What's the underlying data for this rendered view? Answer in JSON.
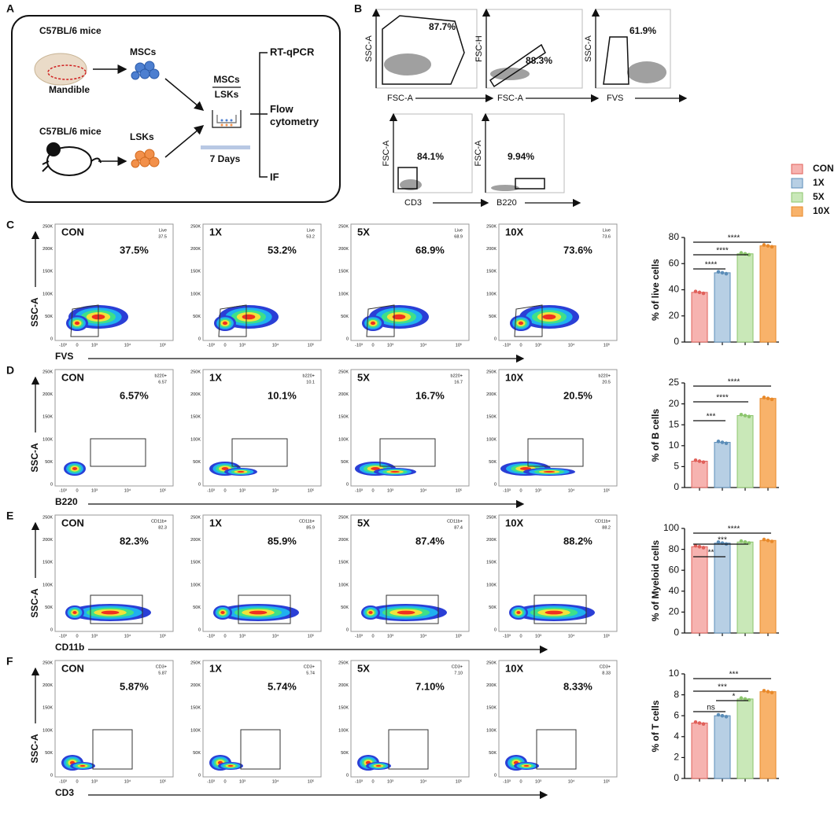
{
  "panel_a": {
    "letter": "A",
    "mice_top": "C57BL/6 mice",
    "mandible": "Mandible",
    "mscs": "MSCs",
    "mice_bottom": "C57BL/6 mice",
    "lsks": "LSKs",
    "coculture_top": "MSCs",
    "coculture_bottom": "LSKs",
    "duration": "7 Days",
    "assays": [
      "RT-qPCR",
      "Flow cytometry",
      "IF"
    ]
  },
  "panel_b": {
    "letter": "B",
    "plots": [
      {
        "y_label": "SSC-A",
        "x_label": "FSC-A",
        "percent": "87.7%"
      },
      {
        "y_label": "FSC-H",
        "x_label": "FSC-A",
        "percent": "88.3%"
      },
      {
        "y_label": "SSC-A",
        "x_label": "FVS",
        "percent": "61.9%"
      },
      {
        "y_label": "FSC-A",
        "x_label": "CD3",
        "percent": "84.1%"
      },
      {
        "y_label": "FSC-A",
        "x_label": "B220",
        "percent": "9.94%"
      }
    ]
  },
  "flow_axes": {
    "yticks": [
      "250K",
      "200K",
      "150K",
      "100K",
      "50K",
      "0"
    ],
    "xticks": [
      "-10³",
      "0",
      "10³",
      "10⁴",
      "10⁵"
    ]
  },
  "flow_rows": [
    {
      "letter": "C",
      "y_label": "SSC-A",
      "marker": "FVS",
      "gate": "Live",
      "plots": [
        {
          "group": "CON",
          "gate_value": "37.5",
          "percent": "37.5%"
        },
        {
          "group": "1X",
          "gate_value": "53.2",
          "percent": "53.2%"
        },
        {
          "group": "5X",
          "gate_value": "68.9",
          "percent": "68.9%"
        },
        {
          "group": "10X",
          "gate_value": "73.6",
          "percent": "73.6%"
        }
      ]
    },
    {
      "letter": "D",
      "y_label": "SSC-A",
      "marker": "B220",
      "gate": "b220+",
      "plots": [
        {
          "group": "CON",
          "gate_value": "6.57",
          "percent": "6.57%"
        },
        {
          "group": "1X",
          "gate_value": "10.1",
          "percent": "10.1%"
        },
        {
          "group": "5X",
          "gate_value": "16.7",
          "percent": "16.7%"
        },
        {
          "group": "10X",
          "gate_value": "20.5",
          "percent": "20.5%"
        }
      ]
    },
    {
      "letter": "E",
      "y_label": "SSC-A",
      "marker": "CD11b",
      "gate": "CD11b+",
      "plots": [
        {
          "group": "CON",
          "gate_value": "82.3",
          "percent": "82.3%"
        },
        {
          "group": "1X",
          "gate_value": "85.9",
          "percent": "85.9%"
        },
        {
          "group": "5X",
          "gate_value": "87.4",
          "percent": "87.4%"
        },
        {
          "group": "10X",
          "gate_value": "88.2",
          "percent": "88.2%"
        }
      ]
    },
    {
      "letter": "F",
      "y_label": "SSC-A",
      "marker": "CD3",
      "gate": "CD3+",
      "plots": [
        {
          "group": "CON",
          "gate_value": "5.87",
          "percent": "5.87%"
        },
        {
          "group": "1X",
          "gate_value": "5.74",
          "percent": "5.74%"
        },
        {
          "group": "5X",
          "gate_value": "7.10",
          "percent": "7.10%"
        },
        {
          "group": "10X",
          "gate_value": "8.33",
          "percent": "8.33%"
        }
      ]
    }
  ],
  "chart_data": [
    {
      "type": "bar",
      "y_label": "% of live cells",
      "categories": [
        "CON",
        "1X",
        "5X",
        "10X"
      ],
      "colors": [
        "#f6b3b0",
        "#b7cfe4",
        "#c9e8b8",
        "#f8b26a"
      ],
      "edge_colors": [
        "#e0605a",
        "#5b8db8",
        "#8cc56d",
        "#e8892a"
      ],
      "values": [
        38,
        53,
        67.5,
        73.6
      ],
      "ylim": [
        0,
        80
      ],
      "yticks": [
        0,
        20,
        40,
        60,
        80
      ],
      "annotations": [
        "****",
        "****",
        "****"
      ]
    },
    {
      "type": "bar",
      "y_label": "% of B cells",
      "categories": [
        "CON",
        "1X",
        "5X",
        "10X"
      ],
      "colors": [
        "#f6b3b0",
        "#b7cfe4",
        "#c9e8b8",
        "#f8b26a"
      ],
      "edge_colors": [
        "#e0605a",
        "#5b8db8",
        "#8cc56d",
        "#e8892a"
      ],
      "values": [
        6.3,
        10.8,
        17.2,
        21.3
      ],
      "ylim": [
        0,
        25
      ],
      "yticks": [
        0,
        5,
        10,
        15,
        20,
        25
      ],
      "annotations": [
        "***",
        "****",
        "****"
      ]
    },
    {
      "type": "bar",
      "y_label": "% of Myeloid cells",
      "categories": [
        "CON",
        "1X",
        "5X",
        "10X"
      ],
      "colors": [
        "#f6b3b0",
        "#b7cfe4",
        "#c9e8b8",
        "#f8b26a"
      ],
      "edge_colors": [
        "#e0605a",
        "#5b8db8",
        "#8cc56d",
        "#e8892a"
      ],
      "values": [
        82.5,
        86,
        87,
        88.5
      ],
      "ylim": [
        0,
        100
      ],
      "yticks": [
        0,
        20,
        40,
        60,
        80,
        100
      ],
      "annotations": [
        "**",
        "***",
        "****"
      ]
    },
    {
      "type": "bar",
      "y_label": "% of T cells",
      "categories": [
        "CON",
        "1X",
        "5X",
        "10X"
      ],
      "colors": [
        "#f6b3b0",
        "#b7cfe4",
        "#c9e8b8",
        "#f8b26a"
      ],
      "edge_colors": [
        "#e0605a",
        "#5b8db8",
        "#8cc56d",
        "#e8892a"
      ],
      "values": [
        5.3,
        6,
        7.6,
        8.3
      ],
      "ylim": [
        0,
        10
      ],
      "yticks": [
        0,
        2,
        4,
        6,
        8,
        10
      ],
      "annotations": [
        "ns",
        "*",
        "***",
        "***"
      ]
    }
  ]
}
